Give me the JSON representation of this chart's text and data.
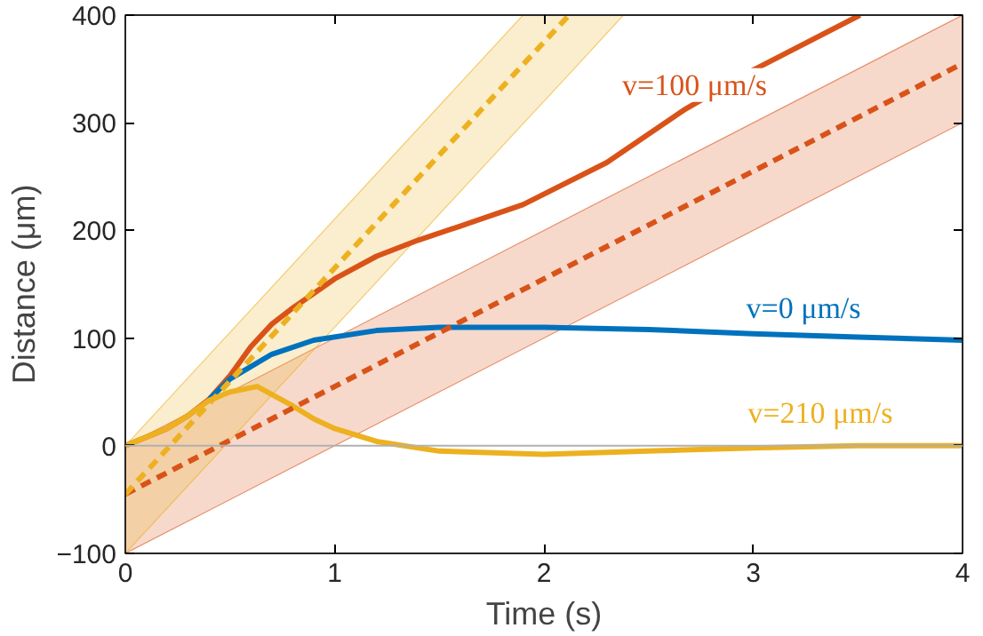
{
  "chart_data": {
    "type": "line",
    "xlabel": "Time (s)",
    "ylabel": "Distance (μm)",
    "xlim": [
      0,
      4
    ],
    "ylim": [
      -100,
      400
    ],
    "xticks": [
      0,
      1,
      2,
      3,
      4
    ],
    "yticks": [
      -100,
      0,
      100,
      200,
      300,
      400
    ],
    "grid": false,
    "legend": false,
    "line_style": "solid",
    "marker": "none",
    "ref_lines": [
      {
        "axis": "y",
        "value": 0,
        "color": "#b0b0b0"
      }
    ],
    "series": [
      {
        "color": "#d95319",
        "name": "v=100 μm/s",
        "x": [
          0,
          0.2,
          0.3,
          0.4,
          0.5,
          0.6,
          0.7,
          0.8,
          1.0,
          1.2,
          1.4,
          1.6,
          1.9,
          2.3,
          2.67,
          3.0,
          3.51
        ],
        "values": [
          0,
          16,
          28,
          43,
          65,
          92,
          113,
          128,
          155,
          176,
          191,
          204,
          224,
          263,
          312,
          349,
          400
        ]
      },
      {
        "color": "#0072bd",
        "name": "v=0 μm/s",
        "x": [
          0.4,
          0.5,
          0.7,
          0.9,
          1.2,
          1.5,
          2.0,
          2.5,
          3.0,
          3.5,
          4.0
        ],
        "values": [
          43,
          62,
          85,
          98,
          107,
          110,
          110,
          108,
          104,
          101,
          98
        ]
      },
      {
        "color": "#edb120",
        "name": "v=210 μm/s",
        "x": [
          0,
          0.2,
          0.3,
          0.4,
          0.5,
          0.63,
          0.8,
          0.9,
          1.0,
          1.2,
          1.5,
          2.0,
          2.5,
          3.0,
          3.5,
          4.0
        ],
        "values": [
          0,
          16,
          28,
          42,
          50,
          55,
          37,
          25,
          16,
          4,
          -5,
          -8,
          -5,
          -2,
          0,
          0
        ]
      },
      {
        "color": "#d95319",
        "line_style": "dashed",
        "x": [
          0,
          4
        ],
        "values": [
          -45,
          355
        ],
        "lower": [
          -100,
          300
        ],
        "upper": [
          0,
          400
        ]
      },
      {
        "color": "#edb120",
        "line_style": "dashed",
        "x": [
          0,
          1.9,
          2.12,
          2.38
        ],
        "values": [
          -45,
          354,
          400,
          null
        ],
        "lower": [
          -100,
          299,
          345,
          400
        ],
        "upper": [
          0,
          400,
          400,
          400
        ]
      }
    ]
  }
}
